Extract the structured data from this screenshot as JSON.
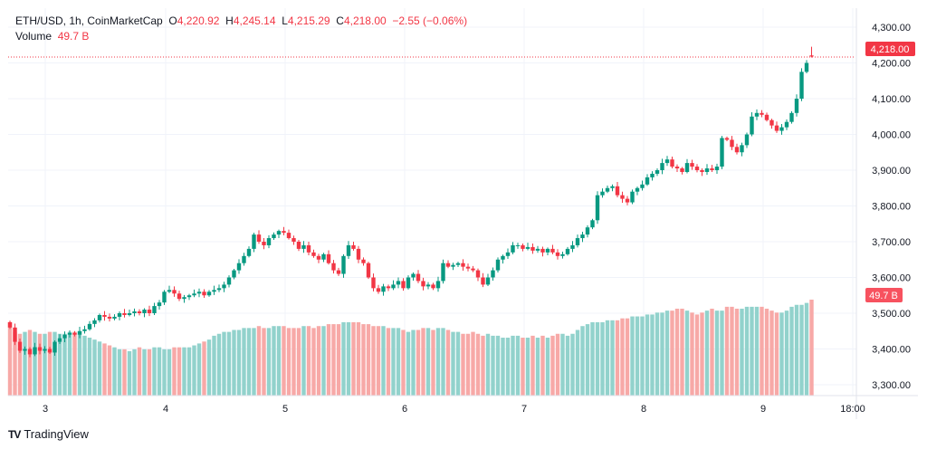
{
  "header": {
    "symbol": "ETH/USD, 1h, CoinMarketCap",
    "o_label": "O",
    "o": "4,220.92",
    "h_label": "H",
    "h": "4,245.14",
    "l_label": "L",
    "l": "4,215.29",
    "c_label": "C",
    "c": "4,218.00",
    "change": "−2.55 (−0.06%)",
    "volume_label": "Volume",
    "volume": "49.7 B"
  },
  "brand": "TradingView",
  "colors": {
    "up": "#089981",
    "down": "#f23645",
    "vol_up": "#92d2cc",
    "vol_down": "#f7a9a7"
  },
  "chart_data": {
    "type": "candlestick",
    "title": "ETH/USD, 1h, CoinMarketCap",
    "ylim": [
      3270,
      4330
    ],
    "y_ticks": [
      "4,300.00",
      "4,200.00",
      "4,100.00",
      "4,000.00",
      "3,900.00",
      "3,800.00",
      "3,700.00",
      "3,600.00",
      "3,500.00",
      "3,400.00",
      "3,300.00"
    ],
    "y_tick_values": [
      4300,
      4200,
      4100,
      4000,
      3900,
      3800,
      3700,
      3600,
      3500,
      3400,
      3300
    ],
    "x_ticks": [
      "3",
      "4",
      "5",
      "6",
      "7",
      "8",
      "9",
      "18:00"
    ],
    "last_price_label": "4,218.00",
    "last_volume_label": "49.7 B",
    "first_open": 3475,
    "last_candle": {
      "open": 4220.92,
      "high": 4245.14,
      "low": 4215.29,
      "close": 4218.0
    },
    "closes": [
      3460,
      3420,
      3395,
      3400,
      3385,
      3405,
      3395,
      3400,
      3390,
      3420,
      3430,
      3440,
      3445,
      3440,
      3450,
      3455,
      3470,
      3480,
      3495,
      3490,
      3485,
      3490,
      3500,
      3495,
      3500,
      3505,
      3500,
      3510,
      3500,
      3520,
      3530,
      3560,
      3565,
      3555,
      3540,
      3545,
      3550,
      3555,
      3560,
      3550,
      3560,
      3565,
      3570,
      3580,
      3600,
      3620,
      3640,
      3660,
      3680,
      3720,
      3700,
      3690,
      3710,
      3720,
      3730,
      3725,
      3710,
      3700,
      3680,
      3690,
      3670,
      3660,
      3650,
      3665,
      3640,
      3620,
      3610,
      3660,
      3690,
      3680,
      3650,
      3640,
      3600,
      3570,
      3560,
      3575,
      3570,
      3580,
      3590,
      3570,
      3600,
      3610,
      3590,
      3575,
      3580,
      3570,
      3590,
      3640,
      3630,
      3635,
      3640,
      3630,
      3625,
      3620,
      3600,
      3580,
      3600,
      3620,
      3650,
      3660,
      3670,
      3690,
      3690,
      3680,
      3685,
      3675,
      3680,
      3670,
      3680,
      3670,
      3660,
      3665,
      3680,
      3690,
      3710,
      3720,
      3740,
      3760,
      3830,
      3840,
      3850,
      3855,
      3830,
      3820,
      3810,
      3840,
      3850,
      3860,
      3880,
      3890,
      3900,
      3920,
      3930,
      3910,
      3905,
      3895,
      3920,
      3910,
      3900,
      3895,
      3905,
      3900,
      3910,
      3990,
      3985,
      3965,
      3950,
      3970,
      4000,
      4050,
      4060,
      4055,
      4040,
      4025,
      4010,
      4020,
      4035,
      4060,
      4100,
      4175,
      4200,
      4218
    ],
    "volume_unit": "B",
    "volumes": [
      38,
      33,
      32,
      33,
      34,
      33,
      32,
      32,
      33,
      33,
      32,
      32,
      33,
      33,
      32,
      31,
      30,
      29,
      28,
      27,
      26,
      25,
      24,
      24,
      23,
      24,
      25,
      24,
      24,
      25,
      25,
      24,
      24,
      25,
      25,
      25,
      25,
      26,
      27,
      28,
      29,
      31,
      32,
      33,
      33,
      34,
      34,
      35,
      35,
      35,
      36,
      35,
      35,
      36,
      36,
      36,
      35,
      35,
      35,
      36,
      36,
      35,
      36,
      36,
      37,
      37,
      37,
      38,
      38,
      38,
      38,
      37,
      37,
      36,
      36,
      36,
      35,
      35,
      35,
      34,
      33,
      34,
      34,
      35,
      35,
      34,
      35,
      35,
      34,
      33,
      33,
      32,
      32,
      33,
      32,
      31,
      32,
      31,
      31,
      30,
      30,
      31,
      31,
      30,
      30,
      31,
      30,
      31,
      30,
      31,
      32,
      32,
      31,
      32,
      34,
      36,
      37,
      38,
      38,
      38,
      39,
      39,
      39,
      40,
      40,
      41,
      41,
      41,
      42,
      42,
      43,
      43,
      44,
      44,
      45,
      45,
      44,
      43,
      42,
      43,
      44,
      45,
      44,
      44,
      46,
      46,
      45,
      45,
      46,
      46,
      46,
      46,
      45,
      44,
      43,
      43,
      44,
      46,
      47,
      47,
      48,
      49.7
    ]
  }
}
